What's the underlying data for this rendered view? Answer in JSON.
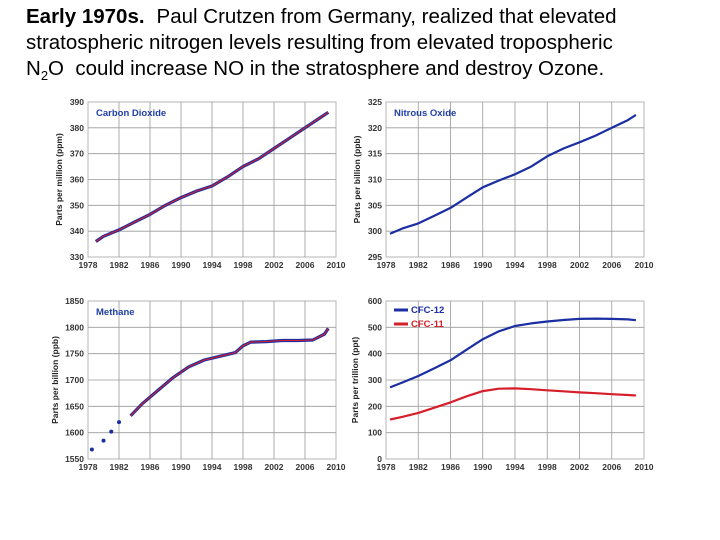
{
  "caption": {
    "heading": "Early 1970s.",
    "line1": "Paul Crutzen from Germany, realized that elevated",
    "line2": "stratospheric nitrogen levels resulting from elevated tropospheric",
    "n2o_n": "N",
    "n2o_sub": "2",
    "n2o_o": "O",
    "line3_rest": "could increase NO in the stratosphere and destroy Ozone."
  },
  "colors": {
    "blue": "#1b2fa3",
    "red": "#d61f2b",
    "grid": "#9a9a9a",
    "frame": "#b5b5b5"
  },
  "chart_data": [
    {
      "type": "line",
      "title": "Carbon Dioxide",
      "ylabel": "Parts per million (ppm)",
      "xlim": [
        1978,
        2010
      ],
      "ylim": [
        330,
        390
      ],
      "xticks": [
        "1978",
        "1982",
        "1986",
        "1990",
        "1994",
        "1998",
        "2002",
        "2006",
        "2010"
      ],
      "yticks": [
        "330",
        "340",
        "350",
        "360",
        "370",
        "380",
        "390"
      ],
      "series": [
        {
          "name": "CO2",
          "x": [
            1979,
            1980,
            1982,
            1984,
            1986,
            1988,
            1990,
            1992,
            1994,
            1996,
            1998,
            2000,
            2002,
            2004,
            2006,
            2008,
            2009
          ],
          "values": [
            336,
            338,
            340.5,
            343.5,
            346.5,
            350,
            353,
            355.5,
            357.5,
            361,
            365,
            368,
            372,
            376,
            380,
            384,
            386
          ]
        }
      ]
    },
    {
      "type": "line",
      "title": "Nitrous Oxide",
      "ylabel": "Parts per billion (ppb)",
      "xlim": [
        1978,
        2010
      ],
      "ylim": [
        295,
        325
      ],
      "xticks": [
        "1978",
        "1982",
        "1986",
        "1990",
        "1994",
        "1998",
        "2002",
        "2006",
        "2010"
      ],
      "yticks": [
        "295",
        "300",
        "305",
        "310",
        "315",
        "320",
        "325"
      ],
      "series": [
        {
          "name": "N2O",
          "x": [
            1978.5,
            1980,
            1982,
            1984,
            1986,
            1988,
            1990,
            1992,
            1994,
            1996,
            1998,
            2000,
            2002,
            2004,
            2006,
            2008,
            2009
          ],
          "values": [
            299.5,
            300.5,
            301.5,
            303,
            304.5,
            306.5,
            308.5,
            309.8,
            311,
            312.5,
            314.5,
            316,
            317.2,
            318.5,
            320,
            321.5,
            322.5
          ]
        }
      ]
    },
    {
      "type": "line",
      "title": "Methane",
      "ylabel": "Parts per billion (ppb)",
      "xlim": [
        1978,
        2010
      ],
      "ylim": [
        1550,
        1850
      ],
      "xticks": [
        "1978",
        "1982",
        "1986",
        "1990",
        "1994",
        "1998",
        "2002",
        "2006",
        "2010"
      ],
      "yticks": [
        "1550",
        "1600",
        "1650",
        "1700",
        "1750",
        "1800",
        "1850"
      ],
      "points": {
        "name": "CH4 early samples",
        "x": [
          1978.5,
          1980,
          1981,
          1982
        ],
        "values": [
          1568,
          1585,
          1602,
          1620
        ]
      },
      "series": [
        {
          "name": "CH4",
          "x": [
            1983.5,
            1985,
            1987,
            1989,
            1991,
            1993,
            1995,
            1997,
            1998,
            1999,
            2001,
            2003,
            2005,
            2007,
            2008.5,
            2009
          ],
          "values": [
            1632,
            1655,
            1680,
            1705,
            1725,
            1738,
            1745,
            1752,
            1765,
            1772,
            1773,
            1775,
            1775,
            1776,
            1787,
            1798
          ]
        }
      ]
    },
    {
      "type": "line",
      "title": "",
      "ylabel": "Parts per trillion (ppt)",
      "xlim": [
        1978,
        2010
      ],
      "ylim": [
        0,
        600
      ],
      "xticks": [
        "1978",
        "1982",
        "1986",
        "1990",
        "1994",
        "1998",
        "2002",
        "2006",
        "2010"
      ],
      "yticks": [
        "0",
        "100",
        "200",
        "300",
        "400",
        "500",
        "600"
      ],
      "legend": [
        "CFC-12",
        "CFC-11"
      ],
      "legend_position": "top-left",
      "series": [
        {
          "name": "CFC-12",
          "color": "blue",
          "x": [
            1978.5,
            1980,
            1982,
            1984,
            1986,
            1988,
            1990,
            1992,
            1994,
            1996,
            1998,
            2000,
            2002,
            2004,
            2006,
            2008,
            2009
          ],
          "values": [
            272,
            290,
            315,
            345,
            375,
            415,
            455,
            485,
            505,
            515,
            522,
            528,
            532,
            533,
            532,
            530,
            527
          ]
        },
        {
          "name": "CFC-11",
          "color": "red",
          "x": [
            1978.5,
            1980,
            1982,
            1984,
            1986,
            1988,
            1990,
            1992,
            1994,
            1996,
            1998,
            2000,
            2002,
            2004,
            2006,
            2008,
            2009
          ],
          "values": [
            150,
            160,
            175,
            195,
            215,
            238,
            258,
            267,
            268,
            265,
            261,
            257,
            253,
            250,
            246,
            243,
            241
          ]
        }
      ]
    }
  ]
}
